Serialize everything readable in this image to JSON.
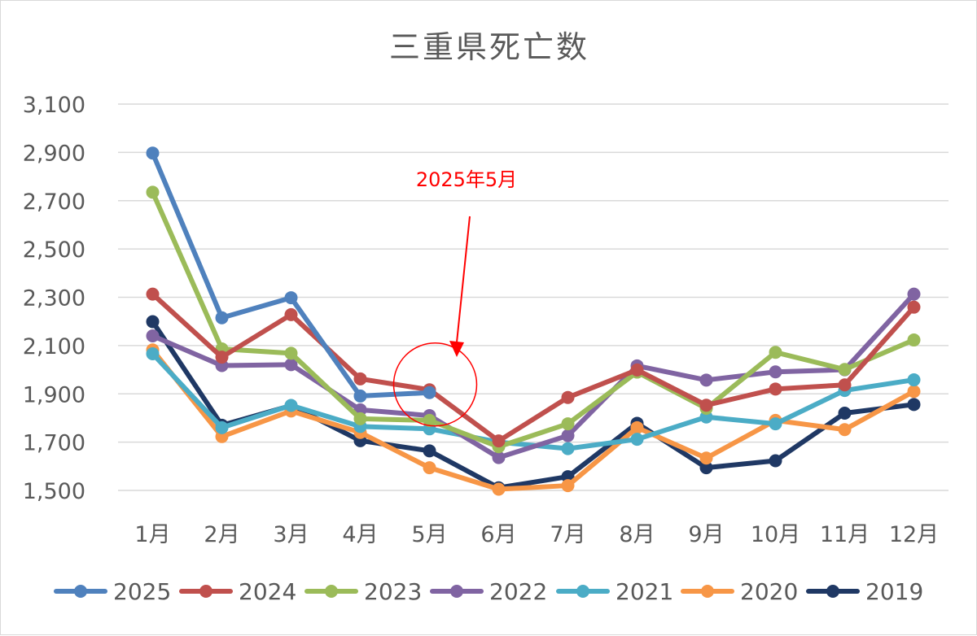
{
  "chart_data": {
    "type": "line",
    "title": "三重県死亡数",
    "xlabel": "",
    "ylabel": "",
    "categories": [
      "1月",
      "2月",
      "3月",
      "4月",
      "5月",
      "6月",
      "7月",
      "8月",
      "9月",
      "10月",
      "11月",
      "12月"
    ],
    "ylim": [
      1500,
      3100
    ],
    "yticks": [
      1500,
      1700,
      1900,
      2100,
      2300,
      2500,
      2700,
      2900,
      3100
    ],
    "ytick_labels": [
      "1,500",
      "1,700",
      "1,900",
      "2,100",
      "2,300",
      "2,500",
      "2,700",
      "2,900",
      "3,100"
    ],
    "grid": "horizontal",
    "legend_position": "bottom",
    "series": [
      {
        "name": "2025",
        "color": "#4f81bd",
        "values": [
          2897,
          2215,
          2298,
          1891,
          1905,
          null,
          null,
          null,
          null,
          null,
          null,
          null
        ]
      },
      {
        "name": "2024",
        "color": "#c0504d",
        "values": [
          2313,
          2052,
          2228,
          1962,
          1917,
          1705,
          1885,
          1999,
          1853,
          1920,
          1937,
          2259
        ]
      },
      {
        "name": "2023",
        "color": "#9bbb59",
        "values": [
          2735,
          2086,
          2068,
          1797,
          1790,
          1681,
          1776,
          1990,
          1840,
          2072,
          2001,
          2123
        ]
      },
      {
        "name": "2022",
        "color": "#8064a2",
        "values": [
          2140,
          2017,
          2021,
          1834,
          1810,
          1636,
          1727,
          2016,
          1957,
          1991,
          2000,
          2313
        ]
      },
      {
        "name": "2021",
        "color": "#4bacc6",
        "values": [
          2066,
          1760,
          1852,
          1765,
          1755,
          1700,
          1673,
          1712,
          1804,
          1776,
          1914,
          1958
        ]
      },
      {
        "name": "2020",
        "color": "#f79646",
        "values": [
          2082,
          1723,
          1829,
          1740,
          1594,
          1505,
          1520,
          1760,
          1634,
          1790,
          1752,
          1910
        ]
      },
      {
        "name": "2019",
        "color": "#1f3864",
        "values": [
          2199,
          1770,
          1851,
          1706,
          1664,
          1511,
          1557,
          1778,
          1594,
          1623,
          1820,
          1856
        ]
      }
    ],
    "annotation": {
      "text": "2025年5月",
      "color": "#ff0000",
      "category": "5月",
      "value": 1915
    }
  }
}
